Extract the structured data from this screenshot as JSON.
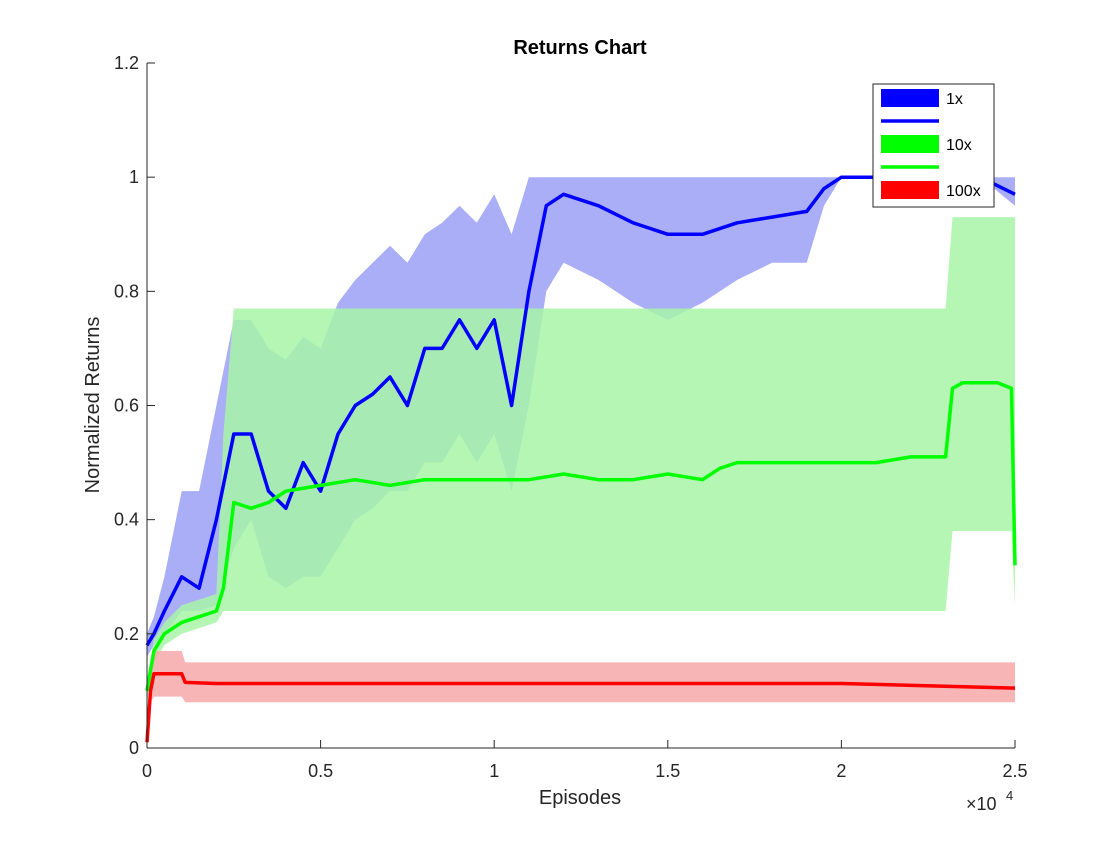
{
  "chart_data": {
    "type": "line",
    "title": "Returns Chart",
    "xlabel": "Episodes",
    "ylabel": "Normalized Returns",
    "x_exponent_label": "×10",
    "x_exponent_power": "4",
    "xlim": [
      0,
      2.5
    ],
    "ylim": [
      0,
      1.2
    ],
    "x_ticks": [
      0,
      0.5,
      1,
      1.5,
      2,
      2.5
    ],
    "x_tick_labels": [
      "0",
      "0.5",
      "1",
      "1.5",
      "2",
      "2.5"
    ],
    "y_ticks": [
      0,
      0.2,
      0.4,
      0.6,
      0.8,
      1,
      1.2
    ],
    "y_tick_labels": [
      "0",
      "0.2",
      "0.4",
      "0.6",
      "0.8",
      "1",
      "1.2"
    ],
    "grid": false,
    "legend_position": "top-right",
    "legend": [
      {
        "label": "1x",
        "kind": "band",
        "series": "1x"
      },
      {
        "label": "",
        "kind": "line",
        "series": "1x"
      },
      {
        "label": "10x",
        "kind": "band",
        "series": "10x"
      },
      {
        "label": "",
        "kind": "line",
        "series": "10x"
      },
      {
        "label": "100x",
        "kind": "band",
        "series": "100x"
      }
    ],
    "series": [
      {
        "name": "1x",
        "color": "#0000ff",
        "band_color": "#9aa0f5",
        "x": [
          0,
          0.02,
          0.05,
          0.1,
          0.15,
          0.2,
          0.25,
          0.3,
          0.35,
          0.4,
          0.45,
          0.5,
          0.55,
          0.6,
          0.65,
          0.7,
          0.75,
          0.8,
          0.85,
          0.9,
          0.95,
          1.0,
          1.05,
          1.1,
          1.15,
          1.2,
          1.3,
          1.4,
          1.5,
          1.6,
          1.7,
          1.8,
          1.9,
          1.95,
          2.0,
          2.1,
          2.2,
          2.3,
          2.4,
          2.5
        ],
        "mean": [
          0.18,
          0.2,
          0.24,
          0.3,
          0.28,
          0.4,
          0.55,
          0.55,
          0.45,
          0.42,
          0.5,
          0.45,
          0.55,
          0.6,
          0.62,
          0.65,
          0.6,
          0.7,
          0.7,
          0.75,
          0.7,
          0.75,
          0.6,
          0.8,
          0.95,
          0.97,
          0.95,
          0.92,
          0.9,
          0.9,
          0.92,
          0.93,
          0.94,
          0.98,
          1.0,
          1.0,
          1.0,
          1.0,
          1.0,
          0.97
        ],
        "upper": [
          0.2,
          0.23,
          0.3,
          0.45,
          0.45,
          0.6,
          0.75,
          0.75,
          0.7,
          0.68,
          0.72,
          0.7,
          0.78,
          0.82,
          0.85,
          0.88,
          0.85,
          0.9,
          0.92,
          0.95,
          0.92,
          0.97,
          0.9,
          1.0,
          1.0,
          1.0,
          1.0,
          1.0,
          1.0,
          1.0,
          1.0,
          1.0,
          1.0,
          1.0,
          1.0,
          1.0,
          1.0,
          1.0,
          1.0,
          1.0
        ],
        "lower": [
          0.16,
          0.18,
          0.2,
          0.24,
          0.24,
          0.25,
          0.35,
          0.4,
          0.3,
          0.28,
          0.3,
          0.3,
          0.35,
          0.4,
          0.42,
          0.45,
          0.45,
          0.5,
          0.5,
          0.55,
          0.5,
          0.55,
          0.45,
          0.6,
          0.8,
          0.85,
          0.82,
          0.78,
          0.75,
          0.78,
          0.82,
          0.85,
          0.85,
          0.95,
          1.0,
          1.0,
          1.0,
          1.0,
          1.0,
          0.95
        ]
      },
      {
        "name": "10x",
        "color": "#00ff00",
        "band_color": "#a8f5a8",
        "x": [
          0,
          0.02,
          0.05,
          0.1,
          0.15,
          0.2,
          0.22,
          0.25,
          0.3,
          0.35,
          0.4,
          0.5,
          0.6,
          0.7,
          0.8,
          0.9,
          1.0,
          1.1,
          1.2,
          1.3,
          1.4,
          1.5,
          1.6,
          1.65,
          1.7,
          1.8,
          1.9,
          2.0,
          2.1,
          2.2,
          2.3,
          2.32,
          2.35,
          2.4,
          2.45,
          2.49,
          2.5
        ],
        "mean": [
          0.1,
          0.17,
          0.2,
          0.22,
          0.23,
          0.24,
          0.28,
          0.43,
          0.42,
          0.43,
          0.45,
          0.46,
          0.47,
          0.46,
          0.47,
          0.47,
          0.47,
          0.47,
          0.48,
          0.47,
          0.47,
          0.48,
          0.47,
          0.49,
          0.5,
          0.5,
          0.5,
          0.5,
          0.5,
          0.51,
          0.51,
          0.63,
          0.64,
          0.64,
          0.64,
          0.63,
          0.32
        ],
        "upper": [
          0.12,
          0.19,
          0.22,
          0.25,
          0.26,
          0.27,
          0.55,
          0.77,
          0.77,
          0.77,
          0.77,
          0.77,
          0.77,
          0.77,
          0.77,
          0.77,
          0.77,
          0.77,
          0.77,
          0.77,
          0.77,
          0.77,
          0.77,
          0.77,
          0.77,
          0.77,
          0.77,
          0.77,
          0.77,
          0.77,
          0.77,
          0.93,
          0.93,
          0.93,
          0.93,
          0.93,
          0.93
        ],
        "lower": [
          0.08,
          0.15,
          0.18,
          0.2,
          0.21,
          0.22,
          0.24,
          0.24,
          0.24,
          0.24,
          0.24,
          0.24,
          0.24,
          0.24,
          0.24,
          0.24,
          0.24,
          0.24,
          0.24,
          0.24,
          0.24,
          0.24,
          0.24,
          0.24,
          0.24,
          0.24,
          0.24,
          0.24,
          0.24,
          0.24,
          0.24,
          0.38,
          0.38,
          0.38,
          0.38,
          0.38,
          0.25
        ]
      },
      {
        "name": "100x",
        "color": "#ff0000",
        "band_color": "#f7a8a8",
        "x": [
          0,
          0.01,
          0.02,
          0.05,
          0.08,
          0.1,
          0.11,
          0.2,
          0.5,
          1.0,
          1.5,
          2.0,
          2.5
        ],
        "mean": [
          0.01,
          0.1,
          0.13,
          0.13,
          0.13,
          0.13,
          0.115,
          0.113,
          0.113,
          0.113,
          0.113,
          0.113,
          0.105
        ],
        "upper": [
          0.02,
          0.14,
          0.17,
          0.17,
          0.17,
          0.17,
          0.15,
          0.15,
          0.15,
          0.15,
          0.15,
          0.15,
          0.15
        ],
        "lower": [
          0.0,
          0.08,
          0.09,
          0.09,
          0.09,
          0.09,
          0.08,
          0.08,
          0.08,
          0.08,
          0.08,
          0.08,
          0.08
        ]
      }
    ]
  }
}
